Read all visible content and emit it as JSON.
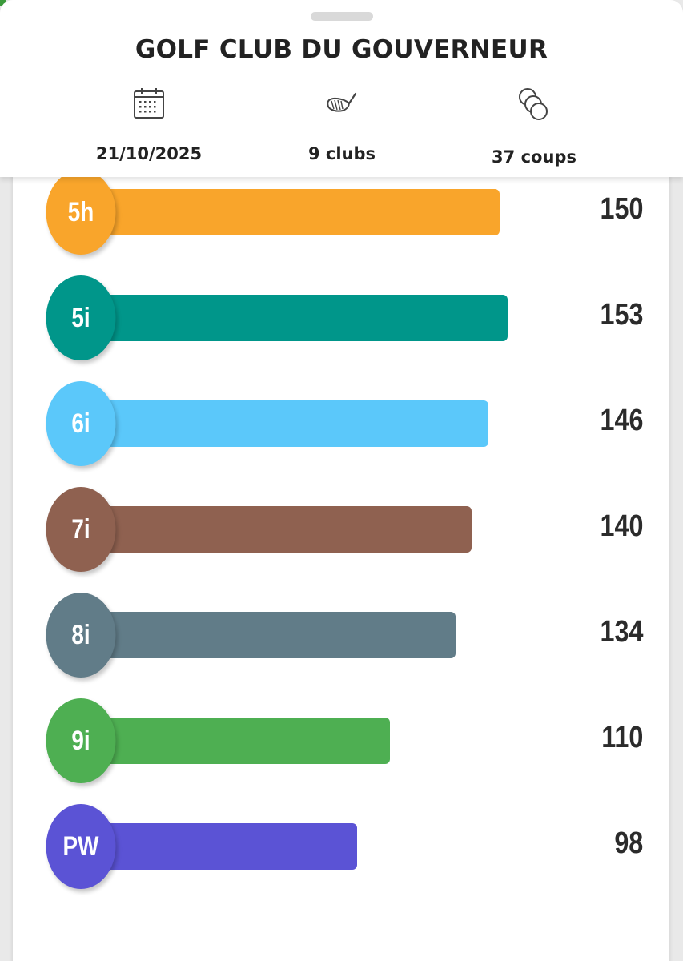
{
  "header": {
    "title": "GOLF CLUB DU GOUVERNEUR",
    "stats": {
      "date": {
        "icon": "calendar-icon",
        "label": "21/10/2025"
      },
      "clubs": {
        "icon": "golf-club-icon",
        "label": "9 clubs"
      },
      "shots": {
        "icon": "golf-balls-icon",
        "label": "37 coups"
      }
    }
  },
  "distance_scale_max": 153,
  "clubs": [
    {
      "name": "5h",
      "distance": "150",
      "color": "#F9A52B"
    },
    {
      "name": "5i",
      "distance": "153",
      "color": "#00968A"
    },
    {
      "name": "6i",
      "distance": "146",
      "color": "#5BC8FA"
    },
    {
      "name": "7i",
      "distance": "140",
      "color": "#8F6150"
    },
    {
      "name": "8i",
      "distance": "134",
      "color": "#617C88"
    },
    {
      "name": "9i",
      "distance": "110",
      "color": "#4EAF52"
    },
    {
      "name": "PW",
      "distance": "98",
      "color": "#5B53D5"
    }
  ]
}
